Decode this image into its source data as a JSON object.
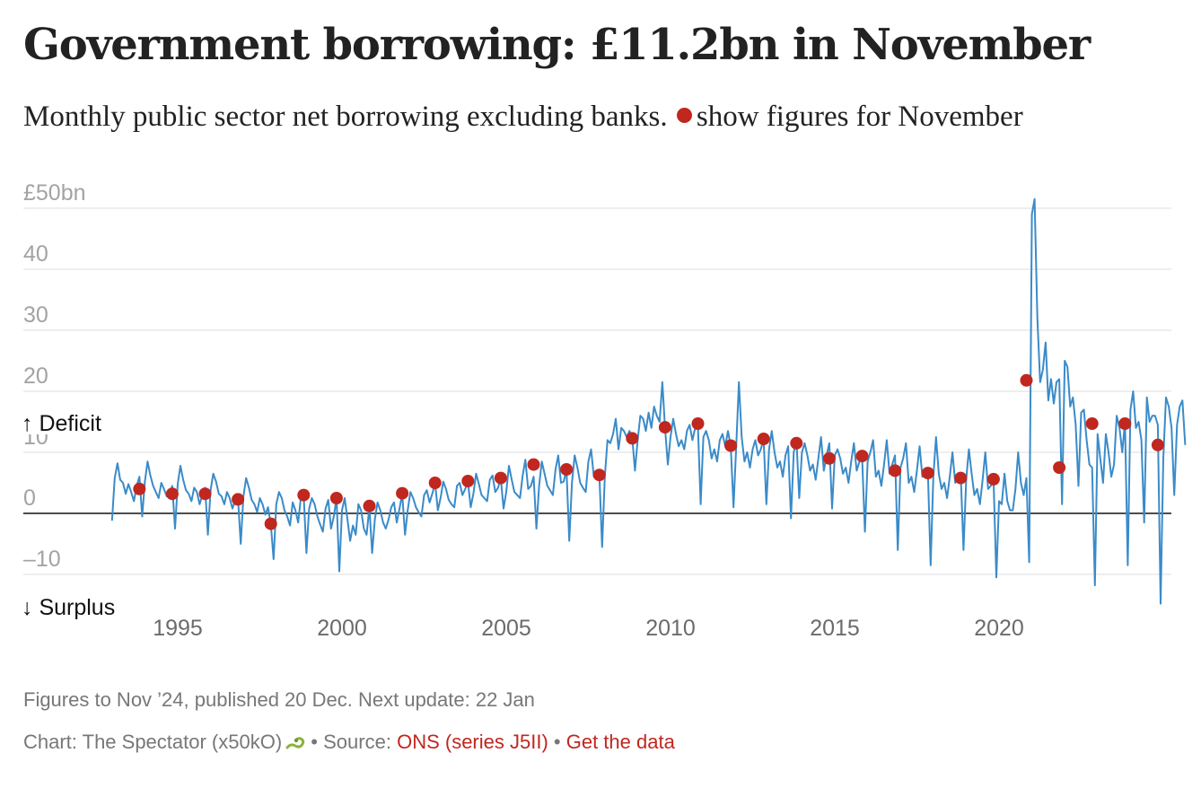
{
  "title": "Government borrowing: £11.2bn in November",
  "subtitle": {
    "text_before": "Monthly public sector net borrowing excluding banks.",
    "text_after": "show figures for November"
  },
  "footer": {
    "line1": "Figures to Nov ’24, published 20 Dec. Next update: 22 Jan",
    "credit": "Chart: The Spectator (x50kO)",
    "source_label": "Source:",
    "source_link": "ONS (series J5II)",
    "data_link": "Get the data",
    "separator": "•"
  },
  "colors": {
    "line": "#3a8bc9",
    "november": "#c0271e",
    "grid": "#dddddd",
    "zero": "#111111"
  },
  "chart_data": {
    "type": "line",
    "title": "Government borrowing: £11.2bn in November",
    "ylabel": "",
    "xlabel": "",
    "ylim": [
      -15,
      52
    ],
    "xlim": [
      1992.9,
      2025.5
    ],
    "y_ticks": [
      {
        "value": 50,
        "label": "£50bn"
      },
      {
        "value": 40,
        "label": "40"
      },
      {
        "value": 30,
        "label": "30"
      },
      {
        "value": 20,
        "label": "20"
      },
      {
        "value": 10,
        "label": "10"
      },
      {
        "value": 0,
        "label": "0"
      },
      {
        "value": -10,
        "label": "–10"
      }
    ],
    "x_ticks": [
      {
        "value": 1995,
        "label": "1995"
      },
      {
        "value": 2000,
        "label": "2000"
      },
      {
        "value": 2005,
        "label": "2005"
      },
      {
        "value": 2010,
        "label": "2010"
      },
      {
        "value": 2015,
        "label": "2015"
      },
      {
        "value": 2020,
        "label": "2020"
      }
    ],
    "annotations": {
      "up": "↑ Deficit",
      "down": "↓ Surplus"
    },
    "grid": true,
    "zero_line": true,
    "series": [
      {
        "values": [
          -1.2,
          5.8,
          8.2,
          5.5,
          5.0,
          3.2,
          4.8,
          3.5,
          2.0,
          4.5,
          6.0,
          -0.5,
          5.2,
          8.5,
          6.2,
          4.5,
          3.5,
          2.5,
          5.0,
          4.0,
          2.8,
          3.2,
          4.5,
          -2.5,
          4.8,
          7.8,
          5.5,
          3.8,
          3.2,
          2.0,
          4.2,
          3.5,
          1.5,
          3.0,
          4.2,
          -3.5,
          3.8,
          6.5,
          5.2,
          3.2,
          2.8,
          1.5,
          3.5,
          2.5,
          0.8,
          2.2,
          2.5,
          -5.0,
          2.8,
          5.8,
          4.2,
          2.2,
          1.5,
          0.2,
          2.5,
          1.5,
          -0.2,
          1.0,
          -1.8,
          -7.5,
          1.5,
          3.5,
          2.5,
          0.5,
          -0.5,
          -2.0,
          1.8,
          0.5,
          -1.5,
          2.8,
          3.0,
          -6.5,
          0.8,
          2.5,
          1.5,
          -0.5,
          -1.8,
          -3.0,
          0.8,
          2.2,
          -2.5,
          -0.5,
          2.5,
          -9.5,
          0.5,
          2.5,
          -1.0,
          -4.5,
          -2.0,
          -3.5,
          1.5,
          0.5,
          -2.5,
          -3.5,
          1.0,
          -6.5,
          -1.0,
          1.8,
          0.5,
          -1.5,
          -2.5,
          -1.0,
          1.0,
          1.8,
          -1.5,
          0.8,
          3.2,
          -3.5,
          0.5,
          3.5,
          2.5,
          1.0,
          0.2,
          -0.5,
          3.0,
          3.8,
          1.8,
          3.2,
          5.0,
          0.5,
          2.5,
          5.2,
          4.0,
          2.2,
          1.5,
          1.0,
          4.5,
          5.0,
          3.0,
          4.0,
          5.2,
          1.0,
          3.2,
          6.5,
          4.8,
          3.0,
          2.5,
          2.0,
          5.5,
          6.2,
          3.5,
          4.2,
          5.8,
          0.8,
          3.5,
          7.8,
          5.5,
          3.5,
          3.0,
          2.5,
          6.2,
          8.8,
          4.0,
          4.5,
          6.0,
          -2.5,
          4.5,
          8.5,
          6.5,
          4.5,
          3.8,
          3.0,
          7.2,
          9.5,
          5.0,
          5.2,
          7.2,
          -4.5,
          5.0,
          9.5,
          7.5,
          5.0,
          4.2,
          3.5,
          8.5,
          10.5,
          6.0,
          6.5,
          6.5,
          -5.5,
          6.0,
          12.0,
          11.5,
          13.0,
          15.5,
          10.5,
          14.0,
          13.5,
          12.5,
          13.5,
          12.5,
          7.0,
          12.0,
          16.0,
          15.5,
          13.5,
          16.5,
          14.0,
          17.5,
          16.0,
          15.0,
          21.5,
          14.0,
          8.0,
          12.5,
          15.5,
          13.0,
          11.0,
          12.0,
          10.5,
          13.5,
          14.5,
          12.0,
          14.0,
          14.5,
          1.5,
          12.5,
          13.5,
          12.0,
          9.0,
          10.5,
          8.5,
          12.0,
          13.0,
          11.0,
          13.5,
          11.0,
          1.0,
          11.0,
          21.5,
          12.5,
          8.5,
          10.0,
          7.5,
          10.5,
          12.0,
          9.5,
          10.5,
          12.2,
          1.5,
          10.5,
          13.5,
          10.0,
          7.5,
          8.5,
          6.0,
          9.5,
          11.0,
          -0.8,
          10.0,
          12.0,
          2.5,
          10.0,
          11.5,
          9.5,
          7.0,
          8.0,
          5.5,
          9.0,
          12.5,
          7.0,
          9.5,
          11.5,
          0.8,
          9.5,
          10.5,
          9.0,
          6.5,
          7.5,
          5.0,
          8.5,
          11.5,
          7.0,
          8.5,
          9.0,
          -3.0,
          8.5,
          10.0,
          12.0,
          6.0,
          7.0,
          4.5,
          8.0,
          12.0,
          6.5,
          8.0,
          9.5,
          -6.0,
          7.5,
          9.0,
          11.5,
          5.0,
          6.0,
          3.5,
          7.0,
          11.0,
          6.0,
          6.5,
          7.0,
          -8.5,
          6.0,
          12.5,
          6.5,
          4.0,
          5.0,
          2.5,
          6.0,
          10.0,
          5.0,
          5.5,
          6.5,
          -6.0,
          5.5,
          10.5,
          6.5,
          3.0,
          4.0,
          1.5,
          5.5,
          10.0,
          4.0,
          4.5,
          5.5,
          -10.5,
          2.0,
          1.5,
          6.5,
          2.0,
          0.5,
          0.5,
          4.0,
          10.0,
          5.0,
          3.0,
          5.8,
          -8.0,
          49.0,
          51.5,
          32.0,
          21.5,
          23.5,
          28.0,
          18.5,
          22.0,
          18.0,
          21.5,
          22.0,
          1.5,
          25.0,
          24.0,
          17.5,
          19.0,
          14.5,
          4.5,
          16.5,
          17.0,
          12.0,
          8.0,
          7.5,
          -11.8,
          13.0,
          9.0,
          5.0,
          13.0,
          10.0,
          6.0,
          8.0,
          16.0,
          14.0,
          10.0,
          15.0,
          -8.5,
          17.0,
          20.0,
          14.0,
          15.0,
          12.0,
          -1.5,
          19.0,
          15.0,
          16.0,
          16.0,
          14.5,
          -14.8,
          9.0,
          19.0,
          17.5,
          14.0,
          3.0,
          14.5,
          17.5,
          18.5,
          11.2
        ],
        "start": "Jan 1993",
        "frequency": "monthly"
      }
    ],
    "november_points": [
      {
        "x": "Nov 1993",
        "y": 4.0
      },
      {
        "x": "Nov 1994",
        "y": 3.2
      },
      {
        "x": "Nov 1995",
        "y": 3.2
      },
      {
        "x": "Nov 1996",
        "y": 2.3
      },
      {
        "x": "Nov 1997",
        "y": -1.7
      },
      {
        "x": "Nov 1998",
        "y": 3.0
      },
      {
        "x": "Nov 1999",
        "y": 2.5
      },
      {
        "x": "Nov 2000",
        "y": 1.2
      },
      {
        "x": "Nov 2001",
        "y": 3.3
      },
      {
        "x": "Nov 2002",
        "y": 5.0
      },
      {
        "x": "Nov 2003",
        "y": 5.3
      },
      {
        "x": "Nov 2004",
        "y": 5.8
      },
      {
        "x": "Nov 2005",
        "y": 8.0
      },
      {
        "x": "Nov 2006",
        "y": 7.2
      },
      {
        "x": "Nov 2007",
        "y": 6.3
      },
      {
        "x": "Nov 2008",
        "y": 12.3
      },
      {
        "x": "Nov 2009",
        "y": 14.1
      },
      {
        "x": "Nov 2010",
        "y": 14.7
      },
      {
        "x": "Nov 2011",
        "y": 11.1
      },
      {
        "x": "Nov 2012",
        "y": 12.2
      },
      {
        "x": "Nov 2013",
        "y": 11.5
      },
      {
        "x": "Nov 2014",
        "y": 9.0
      },
      {
        "x": "Nov 2015",
        "y": 9.4
      },
      {
        "x": "Nov 2016",
        "y": 7.0
      },
      {
        "x": "Nov 2017",
        "y": 6.6
      },
      {
        "x": "Nov 2018",
        "y": 5.8
      },
      {
        "x": "Nov 2019",
        "y": 5.6
      },
      {
        "x": "Nov 2020",
        "y": 21.8
      },
      {
        "x": "Nov 2021",
        "y": 7.5
      },
      {
        "x": "Nov 2022",
        "y": 14.7
      },
      {
        "x": "Nov 2023",
        "y": 14.7
      },
      {
        "x": "Nov 2024",
        "y": 11.2
      }
    ]
  }
}
